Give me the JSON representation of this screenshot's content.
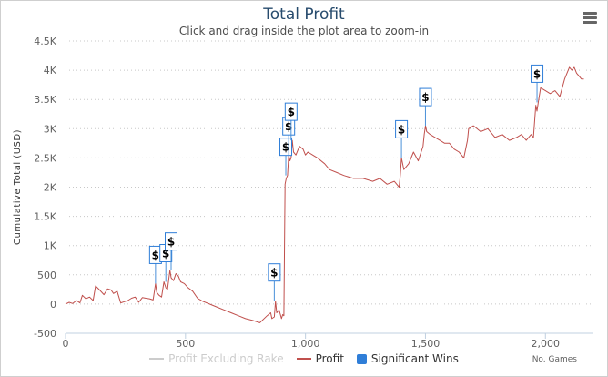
{
  "chart_data": {
    "type": "line",
    "title": "Total Profit",
    "subtitle": "Click and drag inside the plot area to zoom-in",
    "xlabel": "",
    "ylabel": "Cumulative Total (USD)",
    "xlim": [
      0,
      2200
    ],
    "ylim": [
      -500,
      4500
    ],
    "xticks": [
      0,
      500,
      1000,
      1500,
      2000
    ],
    "xtick_labels": [
      "0",
      "500",
      "1,000",
      "1,500",
      "2,000"
    ],
    "yticks": [
      -500,
      0,
      500,
      1000,
      1500,
      2000,
      2500,
      3000,
      3500,
      4000,
      4500
    ],
    "ytick_labels": [
      "-500",
      "0",
      "500",
      "1K",
      "1.5K",
      "2K",
      "2.5K",
      "3K",
      "3.5K",
      "4K",
      "4.5K"
    ],
    "grid": "horizontal-dotted",
    "legend_position": "bottom",
    "series": [
      {
        "name": "Profit Excluding Rake",
        "color": "#cccccc",
        "hidden": true,
        "x": [],
        "y": []
      },
      {
        "name": "Profit",
        "color": "#c0504d",
        "x": [
          0,
          15,
          30,
          45,
          60,
          70,
          85,
          100,
          115,
          125,
          140,
          160,
          175,
          190,
          200,
          215,
          230,
          245,
          260,
          275,
          290,
          305,
          320,
          335,
          350,
          365,
          375,
          380,
          390,
          400,
          410,
          418,
          425,
          435,
          440,
          450,
          460,
          470,
          480,
          495,
          510,
          530,
          550,
          570,
          600,
          630,
          660,
          690,
          720,
          750,
          780,
          810,
          840,
          855,
          860,
          870,
          875,
          880,
          890,
          900,
          905,
          910,
          915,
          920,
          925,
          930,
          935,
          940,
          945,
          950,
          960,
          975,
          990,
          1000,
          1010,
          1030,
          1050,
          1080,
          1100,
          1130,
          1160,
          1200,
          1240,
          1280,
          1310,
          1340,
          1370,
          1390,
          1395,
          1400,
          1410,
          1430,
          1450,
          1470,
          1490,
          1495,
          1500,
          1505,
          1520,
          1540,
          1560,
          1580,
          1600,
          1620,
          1640,
          1660,
          1675,
          1680,
          1700,
          1730,
          1760,
          1790,
          1820,
          1850,
          1880,
          1900,
          1920,
          1940,
          1950,
          1960,
          1965,
          1970,
          1980,
          2000,
          2020,
          2040,
          2060,
          2080,
          2100,
          2110,
          2120,
          2130,
          2140,
          2150,
          2160
        ],
        "y": [
          0,
          30,
          10,
          60,
          20,
          150,
          90,
          120,
          60,
          310,
          250,
          160,
          260,
          240,
          180,
          220,
          20,
          40,
          60,
          100,
          120,
          30,
          110,
          100,
          90,
          70,
          350,
          200,
          150,
          120,
          380,
          280,
          250,
          580,
          450,
          400,
          520,
          480,
          380,
          350,
          280,
          220,
          100,
          50,
          0,
          -50,
          -100,
          -150,
          -200,
          -250,
          -280,
          -320,
          -200,
          -150,
          -250,
          -220,
          50,
          -150,
          -100,
          -250,
          -180,
          -200,
          2050,
          2150,
          2200,
          2550,
          2450,
          2500,
          2800,
          2600,
          2550,
          2700,
          2650,
          2550,
          2600,
          2550,
          2500,
          2400,
          2300,
          2250,
          2200,
          2150,
          2150,
          2100,
          2150,
          2050,
          2100,
          2000,
          2200,
          2500,
          2300,
          2400,
          2600,
          2450,
          2700,
          2900,
          3050,
          2950,
          2900,
          2850,
          2800,
          2750,
          2750,
          2650,
          2600,
          2500,
          2800,
          3000,
          3050,
          2950,
          3000,
          2850,
          2900,
          2800,
          2850,
          2900,
          2800,
          2900,
          2850,
          3400,
          3300,
          3450,
          3700,
          3650,
          3600,
          3650,
          3550,
          3850,
          4050,
          4000,
          4050,
          3950,
          3900,
          3850,
          3850
        ]
      },
      {
        "name": "Significant Wins",
        "color": "#2f7ed8",
        "type": "flags",
        "flag_text": "$",
        "x": [
          375,
          418,
          440,
          870,
          918,
          930,
          940,
          1400,
          1500,
          1965
        ],
        "y": [
          350,
          380,
          580,
          50,
          2200,
          2550,
          2800,
          2500,
          3050,
          3450
        ]
      }
    ],
    "axis_note": "No. Games"
  }
}
